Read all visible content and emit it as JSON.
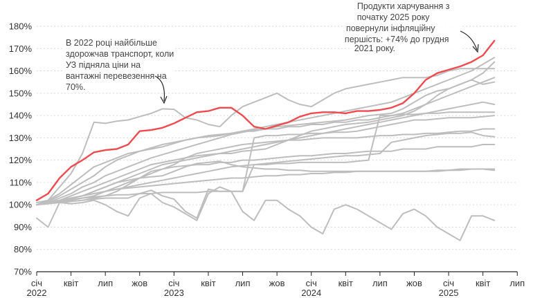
{
  "chart_data": {
    "type": "line",
    "ylim": [
      70,
      180
    ],
    "yticks": [
      70,
      80,
      90,
      100,
      110,
      120,
      130,
      140,
      150,
      160,
      170,
      180
    ],
    "y_unit": "%",
    "x_month_range": [
      "2022-01",
      "2025-07"
    ],
    "xticks": [
      {
        "month": "2022-01",
        "label": "січ",
        "year": "2022"
      },
      {
        "month": "2022-04",
        "label": "квіт",
        "year": ""
      },
      {
        "month": "2022-07",
        "label": "лип",
        "year": ""
      },
      {
        "month": "2022-10",
        "label": "жов",
        "year": ""
      },
      {
        "month": "2023-01",
        "label": "січ",
        "year": "2023"
      },
      {
        "month": "2023-04",
        "label": "квіт",
        "year": ""
      },
      {
        "month": "2023-07",
        "label": "лип",
        "year": ""
      },
      {
        "month": "2023-10",
        "label": "жов",
        "year": ""
      },
      {
        "month": "2024-01",
        "label": "січ",
        "year": "2024"
      },
      {
        "month": "2024-04",
        "label": "квіт",
        "year": ""
      },
      {
        "month": "2024-07",
        "label": "лип",
        "year": ""
      },
      {
        "month": "2024-10",
        "label": "жов",
        "year": ""
      },
      {
        "month": "2025-01",
        "label": "січ",
        "year": "2025"
      },
      {
        "month": "2025-04",
        "label": "квіт",
        "year": ""
      },
      {
        "month": "2025-07",
        "label": "лип",
        "year": ""
      }
    ],
    "start_month": "2022-01",
    "grid": true,
    "colors": {
      "highlight": "#ef4a4f",
      "other": "#bdbdbd",
      "axis": "#222222",
      "grid": "#d9d9d9"
    },
    "highlight_series": {
      "values": [
        102,
        105,
        112,
        117,
        120,
        123.5,
        124.5,
        125,
        127,
        133,
        133.5,
        134.5,
        136.5,
        139,
        141.5,
        142,
        143.5,
        143.5,
        140,
        135,
        134,
        135.5,
        137,
        139.5,
        141,
        141.5,
        141.5,
        141,
        142,
        142,
        142.5,
        143.5,
        145.5,
        150,
        156,
        159,
        160.5,
        162,
        164,
        167,
        173.5
      ]
    },
    "other_series": [
      {
        "values": [
          100,
          102,
          108,
          114,
          123,
          137,
          136.5,
          137.5,
          138,
          139.5,
          141,
          143,
          142.8,
          139,
          138,
          136,
          135,
          140,
          144,
          146,
          148,
          150,
          147,
          145,
          144,
          147,
          150,
          152,
          153,
          154,
          155,
          156,
          157,
          157,
          157,
          158,
          160,
          161,
          161,
          161,
          161
        ]
      },
      {
        "values": [
          100,
          101.5,
          104,
          107,
          110,
          113,
          117,
          120,
          122,
          124,
          125.5,
          127,
          128,
          129,
          130,
          131,
          131.5,
          132,
          133,
          134,
          135,
          136,
          137,
          138,
          139,
          140,
          141,
          142,
          143,
          144,
          145,
          146,
          148,
          150,
          152,
          154,
          156,
          158,
          160,
          163,
          166
        ]
      },
      {
        "values": [
          101,
          102,
          105,
          109,
          113,
          117,
          119,
          121,
          123,
          124,
          125,
          126,
          127.5,
          129,
          130,
          130.5,
          131,
          132,
          133,
          133,
          134,
          134,
          135,
          135,
          136,
          136,
          137,
          137,
          138,
          138,
          139,
          140,
          141,
          143,
          145,
          147,
          149,
          151,
          153,
          155,
          157
        ]
      },
      {
        "values": [
          100,
          101,
          103,
          105,
          108,
          110,
          113,
          115,
          117,
          119,
          121,
          122.5,
          124,
          125.5,
          127,
          128.5,
          130,
          131.5,
          132.5,
          133.5,
          134,
          135,
          135.5,
          136,
          136.5,
          137,
          137.5,
          138,
          139,
          140,
          140.5,
          141,
          143,
          146,
          149,
          151,
          152,
          154,
          156,
          159,
          164
        ]
      },
      {
        "values": [
          100,
          101,
          102,
          104,
          106,
          108,
          110,
          112,
          114,
          116,
          118,
          119,
          120,
          121,
          122,
          122.5,
          123,
          123,
          124,
          124.5,
          125,
          127,
          129,
          131,
          133,
          134,
          135,
          136,
          136.5,
          137,
          138,
          139,
          140,
          142,
          145,
          149,
          152,
          154,
          156,
          154,
          155
        ]
      },
      {
        "values": [
          100,
          101,
          101.5,
          102,
          103,
          104,
          106,
          108,
          110,
          112,
          114,
          116,
          118,
          121,
          123,
          124,
          125,
          126,
          127,
          127.5,
          128,
          128.5,
          129,
          129,
          129.5,
          130,
          130,
          130,
          130,
          130.5,
          131,
          131,
          131.5,
          131.5,
          132,
          132,
          132.5,
          133,
          133,
          134,
          134
        ]
      },
      {
        "values": [
          100,
          100.5,
          101,
          101.5,
          102,
          103,
          104,
          106,
          109,
          112,
          115,
          116,
          117,
          117.5,
          118,
          118,
          119,
          119,
          120,
          120,
          120.5,
          121,
          121.5,
          122,
          122,
          122.5,
          123,
          123,
          123.5,
          124,
          124,
          124,
          125,
          125,
          125,
          126,
          126,
          126,
          126,
          127,
          127
        ]
      },
      {
        "values": [
          100,
          101,
          102,
          103,
          104,
          106,
          108,
          110,
          111,
          112,
          112.5,
          113,
          115,
          117,
          118.5,
          119,
          119.5,
          118,
          117,
          116.5,
          116,
          116,
          115.5,
          115.5,
          115,
          115,
          115,
          115,
          115,
          115,
          115,
          115,
          115,
          115,
          115,
          115.5,
          115.5,
          116,
          116,
          116,
          115.5
        ]
      },
      {
        "values": [
          100,
          101,
          102,
          102.5,
          103,
          103.5,
          104,
          104.5,
          104.5,
          105,
          105,
          105.5,
          105.5,
          105.5,
          105.5,
          106,
          106,
          106,
          106,
          118,
          118,
          118.5,
          118.5,
          119,
          119,
          119,
          119,
          119,
          119.5,
          120,
          140,
          140,
          140.5,
          140.5,
          141,
          141,
          141.5,
          141.5,
          141.5,
          141.5,
          141.5
        ]
      },
      {
        "values": [
          100,
          101,
          101,
          101.5,
          102,
          102.5,
          103,
          103,
          103,
          105,
          106.5,
          104,
          102.5,
          97,
          94,
          107,
          106,
          106,
          106,
          130,
          131,
          131,
          131.5,
          131.5,
          132,
          132,
          132.5,
          132.5,
          133,
          134,
          135,
          136,
          137,
          138,
          138,
          138.5,
          139,
          139,
          139,
          139.5,
          140
        ]
      },
      {
        "values": [
          94,
          90,
          101,
          100.5,
          101,
          102,
          100,
          97,
          95,
          103,
          105,
          101,
          99,
          96,
          93,
          105,
          108,
          106,
          97,
          93,
          102,
          102,
          98,
          95,
          90,
          87,
          98,
          100,
          98,
          95,
          92,
          89,
          96,
          98,
          95,
          90,
          87,
          84,
          95,
          95,
          93
        ]
      },
      {
        "values": [
          100,
          101,
          102,
          103,
          104,
          105,
          106,
          107,
          107.5,
          108,
          108.5,
          109,
          109.5,
          110,
          110.5,
          111,
          111.5,
          112,
          112,
          112.5,
          113,
          113,
          113.5,
          113.5,
          114,
          114,
          114.5,
          114.5,
          115,
          115,
          115,
          115,
          115,
          115,
          115,
          115,
          115.5,
          115.5,
          116,
          116,
          116
        ]
      },
      {
        "values": [
          100,
          101,
          102,
          103,
          104,
          105,
          106,
          107,
          108,
          109,
          110,
          111,
          112,
          113,
          114,
          115,
          116,
          117,
          117.5,
          118,
          118.5,
          119,
          119.5,
          120,
          120.5,
          121,
          121.5,
          122,
          122,
          122.5,
          123,
          128,
          129,
          130,
          131,
          131.5,
          132,
          132,
          132.5,
          131,
          130.5
        ]
      },
      {
        "values": [
          100,
          101,
          102,
          103,
          104,
          106,
          108,
          110,
          112,
          114,
          116,
          118,
          119,
          120,
          121,
          122,
          123,
          124,
          125,
          126,
          127,
          128,
          129,
          130,
          131,
          132,
          133,
          134,
          135,
          136,
          137,
          138,
          139,
          140,
          141,
          142,
          143,
          144,
          145,
          146,
          145
        ]
      }
    ]
  },
  "annotations": {
    "left": {
      "lines": [
        "В 2022 році найбільше",
        "здорожчав транспорт, коли",
        "УЗ підняла ціни на",
        "вантажні перевезення на",
        "70%."
      ]
    },
    "right": {
      "lines": [
        "Продукти харчування з",
        "початку 2025 року",
        "повернули інфляційну",
        "першість: +74% до грудня",
        "2021 року."
      ]
    }
  }
}
